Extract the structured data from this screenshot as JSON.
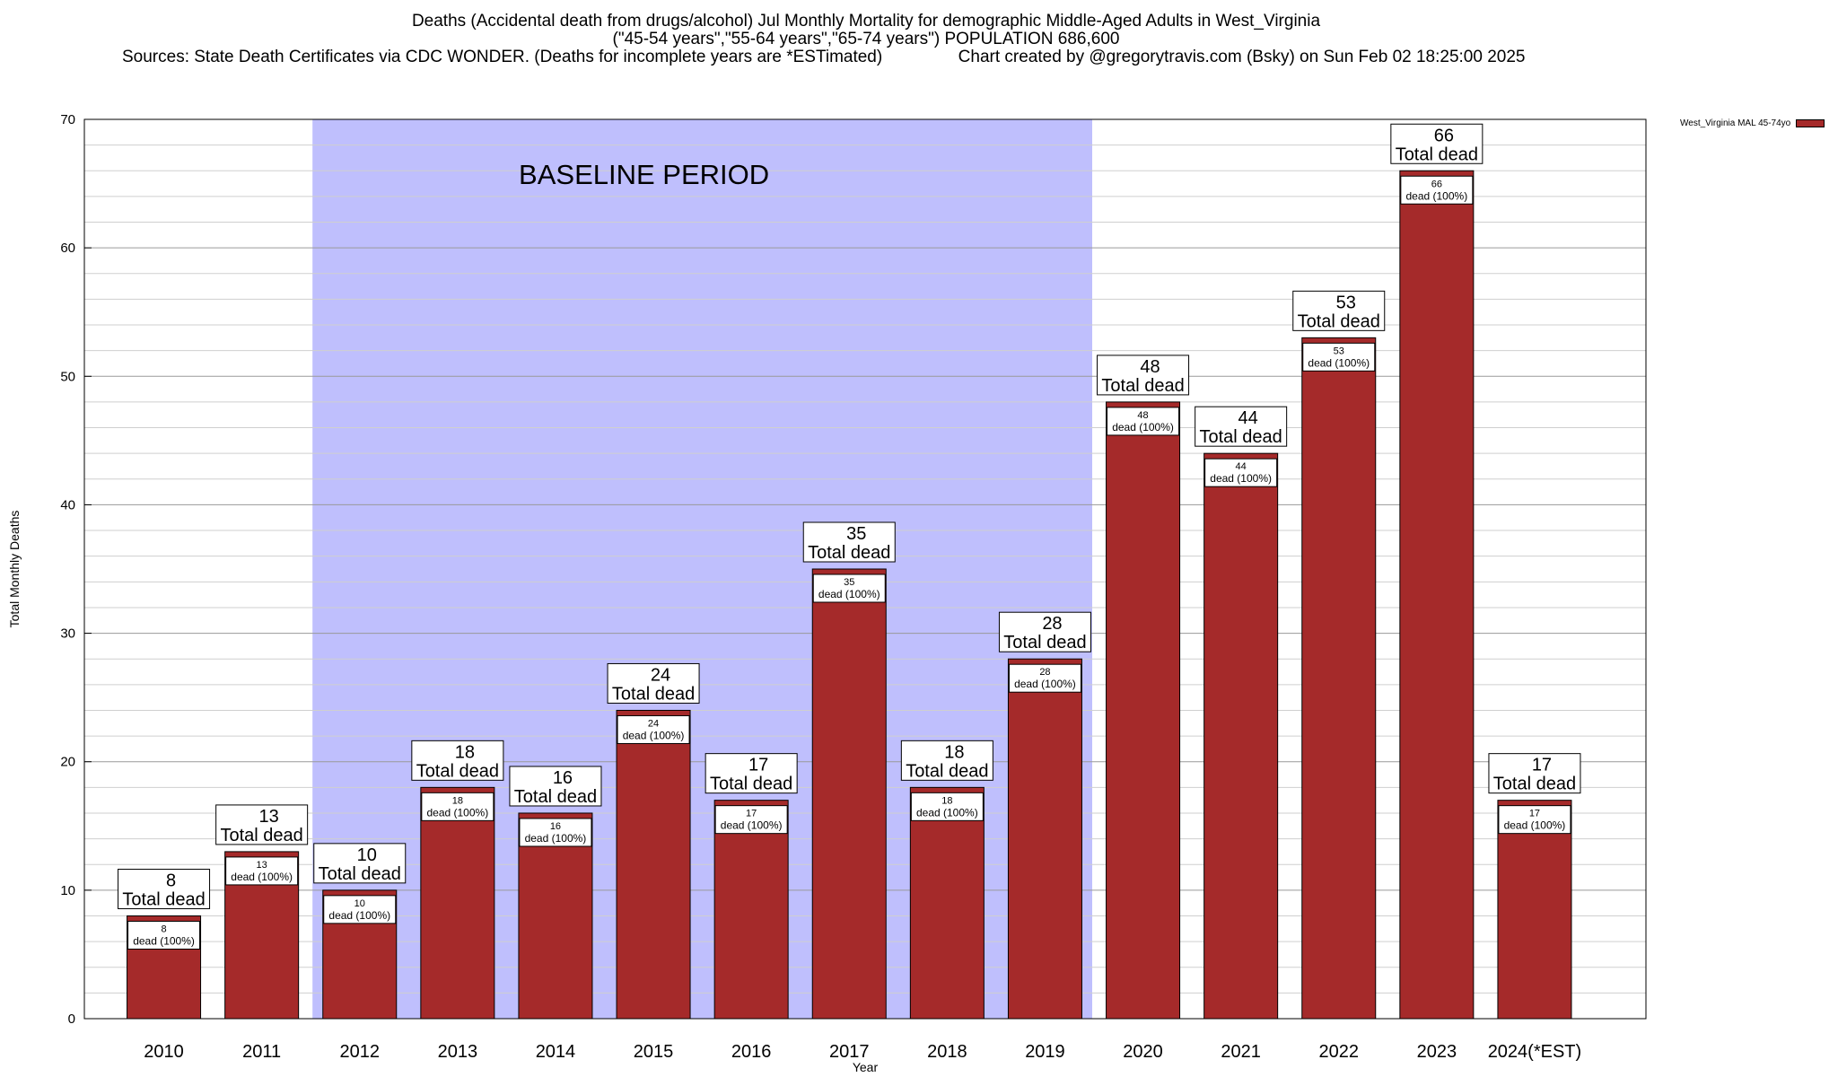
{
  "title": {
    "line1": "Deaths (Accidental death from drugs/alcohol) Jul Monthly Mortality for demographic Middle-Aged Adults in West_Virginia",
    "line2": "(\"45-54 years\",\"55-64 years\",\"65-74 years\") POPULATION 686,600",
    "line3": "Sources: State Death Certificates via CDC WONDER. (Deaths for incomplete years are *ESTimated)                Chart created by @gregorytravis.com (Bsky) on Sun Feb 02 18:25:00 2025"
  },
  "legend": {
    "label": "West_Virginia MAL 45-74yo",
    "color": "#a52a2a"
  },
  "chart_data": {
    "type": "bar",
    "categories": [
      "2010",
      "2011",
      "2012",
      "2013",
      "2014",
      "2015",
      "2016",
      "2017",
      "2018",
      "2019",
      "2020",
      "2021",
      "2022",
      "2023",
      "2024(*EST)"
    ],
    "values": [
      8,
      13,
      10,
      18,
      16,
      24,
      17,
      35,
      18,
      28,
      48,
      44,
      53,
      66,
      17
    ],
    "xlabel": "Year",
    "ylabel": "Total Monthly Deaths",
    "ylim": [
      0,
      70
    ],
    "yticks": [
      0,
      10,
      20,
      30,
      40,
      50,
      60,
      70
    ],
    "grid": true,
    "bar_color": "#a52a2a",
    "baseline": {
      "label": "BASELINE PERIOD",
      "from": "2012",
      "to": "2019",
      "color": "#bfbffd"
    },
    "top_label_suffix": "Total dead",
    "inner_label_suffix": "dead (100%)"
  }
}
